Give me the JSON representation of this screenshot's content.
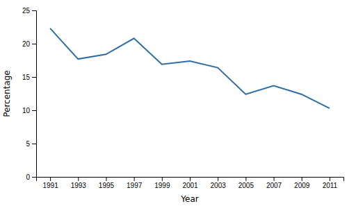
{
  "chart_data": {
    "type": "line",
    "x": [
      1991,
      1993,
      1995,
      1997,
      1999,
      2001,
      2003,
      2005,
      2007,
      2009,
      2011
    ],
    "values": [
      22.3,
      17.7,
      18.4,
      20.8,
      16.9,
      17.4,
      16.4,
      12.4,
      13.7,
      12.4,
      10.3
    ],
    "color": "#2e6da4",
    "xlabel": "Year",
    "ylabel": "Percentage",
    "xlim": [
      1990,
      2012
    ],
    "ylim": [
      0,
      25
    ],
    "xticks": [
      1991,
      1993,
      1995,
      1997,
      1999,
      2001,
      2003,
      2005,
      2007,
      2009,
      2011
    ],
    "yticks": [
      0,
      5,
      10,
      15,
      20,
      25
    ]
  }
}
